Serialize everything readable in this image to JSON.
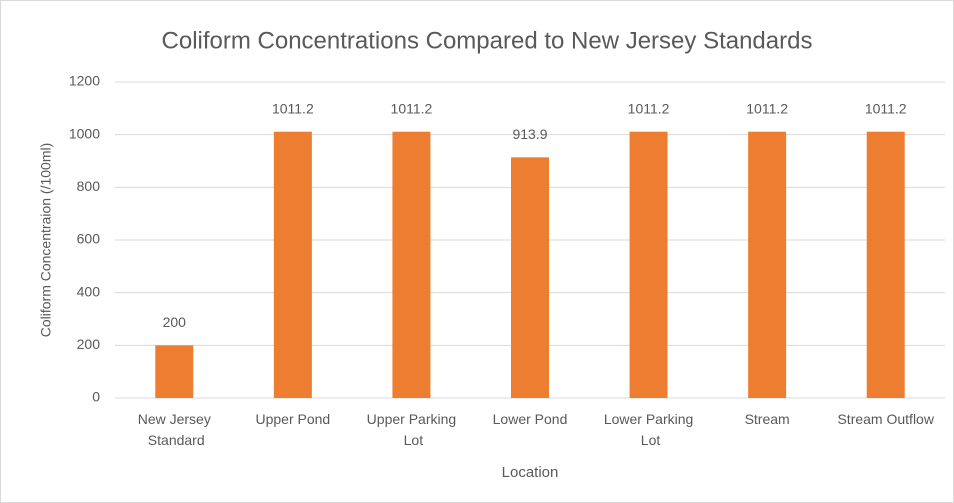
{
  "chart_data": {
    "type": "bar",
    "title": "Coliform Concentrations Compared to New Jersey Standards",
    "x_label": "Location",
    "y_label": "Coliform Concentraion (/100ml)",
    "categories": [
      "New Jersey Standard",
      "Upper Pond",
      "Upper Parking Lot",
      "Lower Pond",
      "Lower Parking Lot",
      "Stream",
      "Stream Outflow"
    ],
    "values": [
      200,
      1011.2,
      1011.2,
      913.9,
      1011.2,
      1011.2,
      1011.2
    ],
    "color": "#ed7d31",
    "ylim": [
      0,
      1200
    ],
    "yticks": [
      0,
      200,
      400,
      600,
      800,
      1000,
      1200
    ],
    "grid": true
  }
}
